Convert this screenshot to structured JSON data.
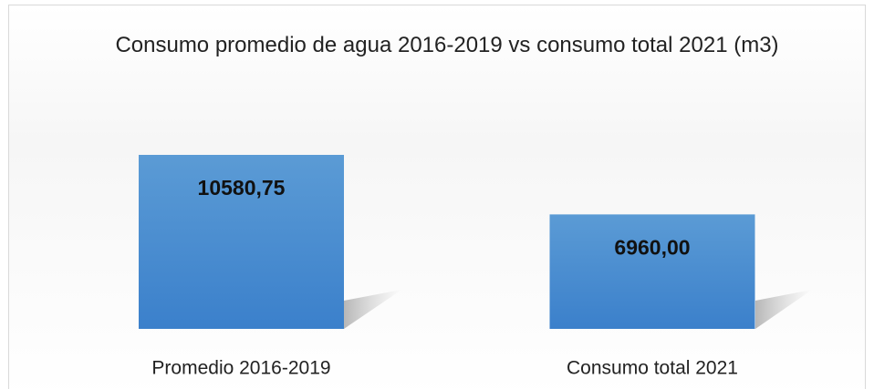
{
  "chart_data": {
    "type": "bar",
    "title": "Consumo promedio de agua 2016-2019 vs consumo total 2021 (m3)",
    "categories": [
      "Promedio 2016-2019",
      "Consumo total 2021"
    ],
    "values": [
      10580.75,
      6960
    ],
    "value_labels": [
      "10580,75",
      "6960,00"
    ],
    "color": "#4a8fd6"
  }
}
